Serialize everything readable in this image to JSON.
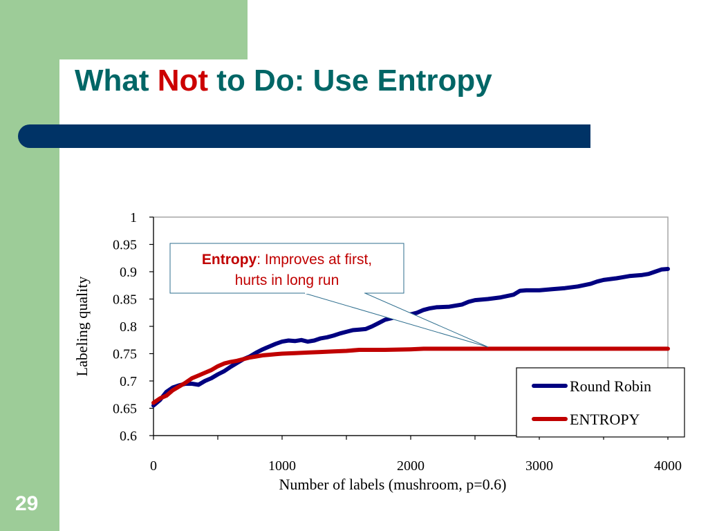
{
  "slide": {
    "title_part1": "What ",
    "title_part2": "Not",
    "title_part3": " to Do: Use Entropy",
    "slide_number": "29",
    "colors": {
      "band": "#9dcc98",
      "title": "#006666",
      "not": "#cc0000",
      "bar": "#003366"
    }
  },
  "callout": {
    "bold": "Entropy",
    "line1_rest": ": Improves at first,",
    "line2": "hurts in long run"
  },
  "chart_data": {
    "type": "line",
    "xlabel": "Number of labels (mushroom, p=0.6)",
    "ylabel": "Labeling quality",
    "xlim": [
      0,
      4000
    ],
    "ylim": [
      0.6,
      1
    ],
    "x_ticks": [
      "0",
      "1000",
      "2000",
      "3000",
      "4000"
    ],
    "y_ticks": [
      "0.6",
      "0.65",
      "0.7",
      "0.75",
      "0.8",
      "0.85",
      "0.9",
      "0.95",
      "1"
    ],
    "legend_position": "bottom-right",
    "series": [
      {
        "name": "Round Robin",
        "color": "#000080",
        "points": [
          [
            0,
            0.655
          ],
          [
            50,
            0.665
          ],
          [
            100,
            0.68
          ],
          [
            150,
            0.688
          ],
          [
            200,
            0.692
          ],
          [
            250,
            0.695
          ],
          [
            300,
            0.695
          ],
          [
            350,
            0.693
          ],
          [
            400,
            0.7
          ],
          [
            450,
            0.705
          ],
          [
            500,
            0.712
          ],
          [
            550,
            0.718
          ],
          [
            600,
            0.726
          ],
          [
            650,
            0.733
          ],
          [
            700,
            0.74
          ],
          [
            750,
            0.745
          ],
          [
            800,
            0.752
          ],
          [
            850,
            0.758
          ],
          [
            900,
            0.763
          ],
          [
            950,
            0.768
          ],
          [
            1000,
            0.772
          ],
          [
            1050,
            0.774
          ],
          [
            1100,
            0.773
          ],
          [
            1150,
            0.775
          ],
          [
            1200,
            0.772
          ],
          [
            1250,
            0.774
          ],
          [
            1300,
            0.778
          ],
          [
            1350,
            0.78
          ],
          [
            1400,
            0.783
          ],
          [
            1450,
            0.787
          ],
          [
            1500,
            0.79
          ],
          [
            1550,
            0.793
          ],
          [
            1600,
            0.794
          ],
          [
            1650,
            0.795
          ],
          [
            1700,
            0.8
          ],
          [
            1750,
            0.806
          ],
          [
            1800,
            0.812
          ],
          [
            1850,
            0.815
          ],
          [
            1900,
            0.818
          ],
          [
            1950,
            0.821
          ],
          [
            2000,
            0.822
          ],
          [
            2050,
            0.825
          ],
          [
            2100,
            0.83
          ],
          [
            2150,
            0.833
          ],
          [
            2200,
            0.835
          ],
          [
            2300,
            0.836
          ],
          [
            2400,
            0.84
          ],
          [
            2450,
            0.845
          ],
          [
            2500,
            0.848
          ],
          [
            2600,
            0.85
          ],
          [
            2700,
            0.853
          ],
          [
            2800,
            0.858
          ],
          [
            2850,
            0.865
          ],
          [
            2900,
            0.866
          ],
          [
            3000,
            0.866
          ],
          [
            3100,
            0.868
          ],
          [
            3200,
            0.87
          ],
          [
            3300,
            0.873
          ],
          [
            3400,
            0.878
          ],
          [
            3450,
            0.882
          ],
          [
            3500,
            0.885
          ],
          [
            3600,
            0.888
          ],
          [
            3650,
            0.89
          ],
          [
            3700,
            0.892
          ],
          [
            3800,
            0.894
          ],
          [
            3850,
            0.896
          ],
          [
            3900,
            0.9
          ],
          [
            3950,
            0.904
          ],
          [
            4000,
            0.905
          ]
        ]
      },
      {
        "name": "ENTROPY",
        "color": "#c00000",
        "points": [
          [
            0,
            0.66
          ],
          [
            50,
            0.668
          ],
          [
            100,
            0.673
          ],
          [
            150,
            0.683
          ],
          [
            200,
            0.69
          ],
          [
            250,
            0.697
          ],
          [
            300,
            0.705
          ],
          [
            350,
            0.71
          ],
          [
            400,
            0.715
          ],
          [
            450,
            0.72
          ],
          [
            500,
            0.727
          ],
          [
            550,
            0.732
          ],
          [
            600,
            0.735
          ],
          [
            650,
            0.737
          ],
          [
            700,
            0.74
          ],
          [
            750,
            0.743
          ],
          [
            800,
            0.745
          ],
          [
            850,
            0.747
          ],
          [
            900,
            0.748
          ],
          [
            950,
            0.749
          ],
          [
            1000,
            0.75
          ],
          [
            1100,
            0.751
          ],
          [
            1200,
            0.752
          ],
          [
            1300,
            0.753
          ],
          [
            1400,
            0.754
          ],
          [
            1500,
            0.755
          ],
          [
            1600,
            0.757
          ],
          [
            1800,
            0.757
          ],
          [
            2000,
            0.758
          ],
          [
            2100,
            0.759
          ],
          [
            2500,
            0.759
          ],
          [
            3000,
            0.759
          ],
          [
            3500,
            0.759
          ],
          [
            4000,
            0.759
          ]
        ]
      }
    ]
  }
}
